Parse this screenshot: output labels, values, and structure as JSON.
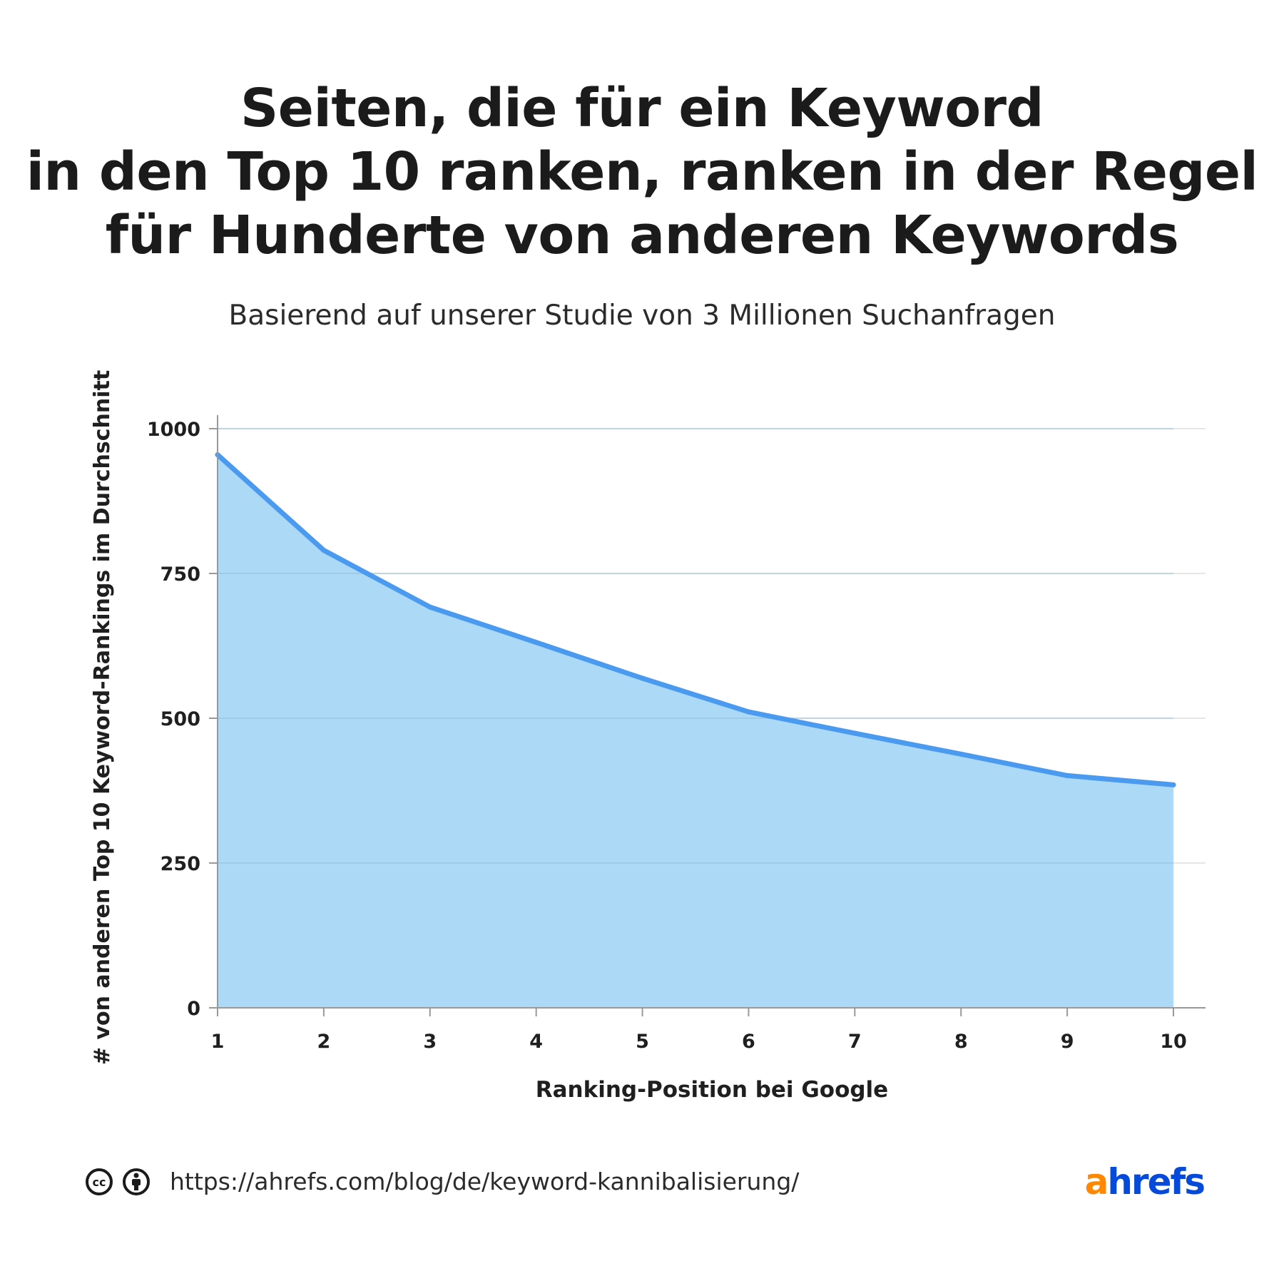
{
  "title_lines": [
    "Seiten, die für ein Keyword",
    "in den Top 10 ranken, ranken in der Regel",
    "für Hunderte von anderen Keywords"
  ],
  "subtitle": "Basierend auf unserer Studie von 3 Millionen Suchanfragen",
  "footer": {
    "url": "https://ahrefs.com/blog/de/keyword-kannibalisierung/",
    "logo_a": "a",
    "logo_rest": "hrefs",
    "icons": [
      "cc-icon",
      "attribution-icon"
    ]
  },
  "colors": {
    "line": "#4a9af0",
    "fill": "#acd9f6",
    "grid": "#dddddd",
    "axis": "#999999",
    "logo_orange": "#ff8800",
    "logo_blue": "#054ada"
  },
  "chart_data": {
    "type": "area",
    "x": [
      1,
      2,
      3,
      4,
      5,
      6,
      7,
      8,
      9,
      10
    ],
    "values": [
      955,
      790,
      692,
      631,
      569,
      511,
      474,
      438,
      401,
      385
    ],
    "xlabel": "Ranking-Position bei Google",
    "ylabel": "# von anderen Top 10 Keyword-Rankings im Durchschnitt",
    "ylim": [
      0,
      1000
    ],
    "xlim": [
      1,
      10
    ],
    "yticks": [
      0,
      250,
      500,
      750,
      1000
    ],
    "xticks": [
      1,
      2,
      3,
      4,
      5,
      6,
      7,
      8,
      9,
      10
    ],
    "grid": true
  }
}
